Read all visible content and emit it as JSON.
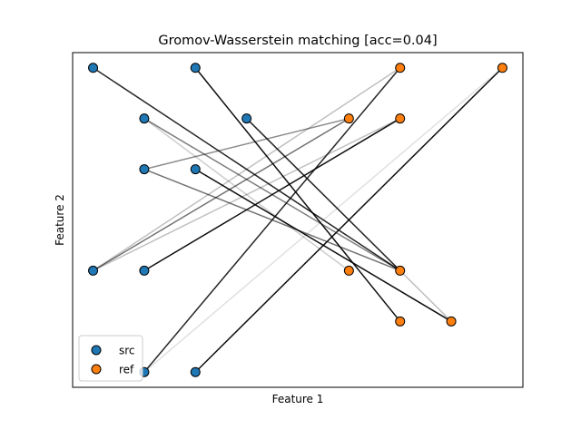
{
  "chart_data": {
    "type": "scatter",
    "title": "Gromov-Wasserstein matching [acc=0.04]",
    "xlabel": "Feature 1",
    "ylabel": "Feature 2",
    "xlim": [
      -0.4,
      8.4
    ],
    "ylim": [
      -0.3,
      6.3
    ],
    "ticks_visible": false,
    "grid": false,
    "legend_position": "lower-left",
    "series": [
      {
        "name": "src",
        "color": "#1f77b4",
        "points": [
          [
            0,
            6
          ],
          [
            2,
            6
          ],
          [
            1,
            5
          ],
          [
            3,
            5
          ],
          [
            1,
            4
          ],
          [
            2,
            4
          ],
          [
            0,
            2
          ],
          [
            1,
            2
          ],
          [
            1,
            0
          ],
          [
            2,
            0
          ]
        ]
      },
      {
        "name": "ref",
        "color": "#ff7f0e",
        "points": [
          [
            6,
            6
          ],
          [
            8,
            6
          ],
          [
            5,
            5
          ],
          [
            6,
            5
          ],
          [
            5,
            2
          ],
          [
            6,
            2
          ],
          [
            6,
            1
          ],
          [
            7,
            1
          ]
        ]
      }
    ],
    "matches": [
      {
        "from": [
          0,
          6
        ],
        "to": [
          6,
          2
        ],
        "weight": 0.85
      },
      {
        "from": [
          2,
          6
        ],
        "to": [
          6,
          1
        ],
        "weight": 0.95
      },
      {
        "from": [
          3,
          5
        ],
        "to": [
          6,
          2
        ],
        "weight": 0.8
      },
      {
        "from": [
          3,
          5
        ],
        "to": [
          7,
          1
        ],
        "weight": 0.25
      },
      {
        "from": [
          1,
          5
        ],
        "to": [
          6,
          2
        ],
        "weight": 0.5
      },
      {
        "from": [
          1,
          5
        ],
        "to": [
          5,
          2
        ],
        "weight": 0.2
      },
      {
        "from": [
          1,
          4
        ],
        "to": [
          5,
          5
        ],
        "weight": 0.45
      },
      {
        "from": [
          1,
          4
        ],
        "to": [
          6,
          2
        ],
        "weight": 0.55
      },
      {
        "from": [
          2,
          4
        ],
        "to": [
          7,
          1
        ],
        "weight": 0.95
      },
      {
        "from": [
          0,
          2
        ],
        "to": [
          6,
          6
        ],
        "weight": 0.25
      },
      {
        "from": [
          0,
          2
        ],
        "to": [
          5,
          5
        ],
        "weight": 0.55
      },
      {
        "from": [
          0,
          2
        ],
        "to": [
          6,
          5
        ],
        "weight": 0.25
      },
      {
        "from": [
          1,
          2
        ],
        "to": [
          6,
          5
        ],
        "weight": 0.95
      },
      {
        "from": [
          1,
          0
        ],
        "to": [
          6,
          6
        ],
        "weight": 0.85
      },
      {
        "from": [
          1,
          0
        ],
        "to": [
          8,
          6
        ],
        "weight": 0.12
      },
      {
        "from": [
          2,
          0
        ],
        "to": [
          8,
          6
        ],
        "weight": 0.95
      }
    ]
  }
}
